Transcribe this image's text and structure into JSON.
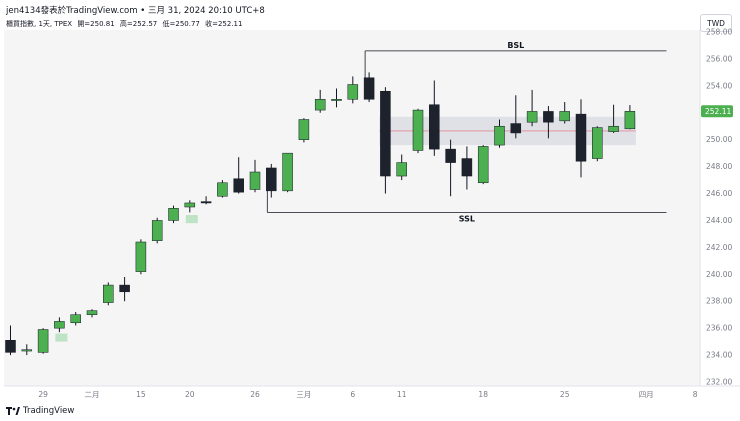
{
  "header": {
    "publisher_line": "jen4134發表於TradingView.com • 三月 31, 2024 20:10 UTC+8"
  },
  "symbol_info": {
    "name": "櫃買指數, 1天, TPEX",
    "open": "開=250.81",
    "high": "高=252.57",
    "low": "低=250.77",
    "close": "收=252.11"
  },
  "currency_label": "TWD",
  "footer": {
    "brand": "TradingView"
  },
  "colors": {
    "up": "#4caf50",
    "down": "#1e222d",
    "wick": "#131722",
    "last_price_badge": "#4caf50",
    "range_box": "#d1d4dc",
    "midline": "#f23645",
    "fvg": "#b2dfb9"
  },
  "chart_data": {
    "type": "candlestick",
    "ylim": [
      232,
      258
    ],
    "y_ticks": [
      "232.00",
      "234.00",
      "236.00",
      "238.00",
      "240.00",
      "242.00",
      "244.00",
      "246.00",
      "248.00",
      "250.00",
      "252.00",
      "254.00",
      "256.00",
      "258.00"
    ],
    "x_ticks": [
      {
        "label": "29",
        "index": 2
      },
      {
        "label": "二月",
        "index": 5
      },
      {
        "label": "15",
        "index": 8
      },
      {
        "label": "20",
        "index": 11
      },
      {
        "label": "26",
        "index": 15
      },
      {
        "label": "三月",
        "index": 18
      },
      {
        "label": "6",
        "index": 21
      },
      {
        "label": "11",
        "index": 24
      },
      {
        "label": "18",
        "index": 29
      },
      {
        "label": "25",
        "index": 34
      },
      {
        "label": "四月",
        "index": 39
      },
      {
        "label": "8",
        "index": 42
      }
    ],
    "candles": [
      {
        "o": 235.1,
        "h": 236.2,
        "l": 234.0,
        "c": 234.2
      },
      {
        "o": 234.3,
        "h": 234.8,
        "l": 234.0,
        "c": 234.4
      },
      {
        "o": 234.2,
        "h": 236.0,
        "l": 234.1,
        "c": 235.9
      },
      {
        "o": 236.0,
        "h": 236.8,
        "l": 235.7,
        "c": 236.5
      },
      {
        "o": 236.4,
        "h": 237.2,
        "l": 236.2,
        "c": 237.0
      },
      {
        "o": 237.0,
        "h": 237.4,
        "l": 236.8,
        "c": 237.3
      },
      {
        "o": 237.9,
        "h": 239.4,
        "l": 237.7,
        "c": 239.2
      },
      {
        "o": 239.2,
        "h": 239.8,
        "l": 238.0,
        "c": 238.7
      },
      {
        "o": 240.2,
        "h": 242.6,
        "l": 240.0,
        "c": 242.4
      },
      {
        "o": 242.5,
        "h": 244.2,
        "l": 242.3,
        "c": 244.0
      },
      {
        "o": 244.0,
        "h": 245.1,
        "l": 243.8,
        "c": 244.9
      },
      {
        "o": 245.0,
        "h": 245.5,
        "l": 244.6,
        "c": 245.3
      },
      {
        "o": 245.4,
        "h": 245.8,
        "l": 245.2,
        "c": 245.3
      },
      {
        "o": 245.8,
        "h": 247.0,
        "l": 245.7,
        "c": 246.8
      },
      {
        "o": 247.1,
        "h": 248.7,
        "l": 246.0,
        "c": 246.1
      },
      {
        "o": 246.3,
        "h": 248.5,
        "l": 246.1,
        "c": 247.6
      },
      {
        "o": 247.9,
        "h": 248.2,
        "l": 245.7,
        "c": 246.2
      },
      {
        "o": 246.2,
        "h": 249.0,
        "l": 246.1,
        "c": 249.0
      },
      {
        "o": 250.0,
        "h": 251.6,
        "l": 249.8,
        "c": 251.5
      },
      {
        "o": 252.2,
        "h": 253.7,
        "l": 252.0,
        "c": 253.0
      },
      {
        "o": 253.0,
        "h": 253.8,
        "l": 252.4,
        "c": 253.0
      },
      {
        "o": 253.0,
        "h": 254.7,
        "l": 252.7,
        "c": 254.1
      },
      {
        "o": 254.6,
        "h": 255.0,
        "l": 252.8,
        "c": 253.0
      },
      {
        "o": 253.6,
        "h": 253.9,
        "l": 246.0,
        "c": 247.3
      },
      {
        "o": 247.3,
        "h": 248.9,
        "l": 247.0,
        "c": 248.3
      },
      {
        "o": 249.2,
        "h": 252.3,
        "l": 249.0,
        "c": 252.2
      },
      {
        "o": 252.6,
        "h": 254.4,
        "l": 248.8,
        "c": 249.3
      },
      {
        "o": 249.3,
        "h": 250.0,
        "l": 245.8,
        "c": 248.3
      },
      {
        "o": 248.6,
        "h": 249.5,
        "l": 246.3,
        "c": 247.3
      },
      {
        "o": 246.8,
        "h": 249.6,
        "l": 246.7,
        "c": 249.5
      },
      {
        "o": 249.6,
        "h": 251.5,
        "l": 249.4,
        "c": 251.0
      },
      {
        "o": 251.2,
        "h": 253.3,
        "l": 250.1,
        "c": 250.5
      },
      {
        "o": 251.3,
        "h": 253.7,
        "l": 251.0,
        "c": 252.1
      },
      {
        "o": 252.1,
        "h": 252.5,
        "l": 250.1,
        "c": 251.3
      },
      {
        "o": 251.4,
        "h": 252.8,
        "l": 251.2,
        "c": 252.1
      },
      {
        "o": 251.9,
        "h": 253.0,
        "l": 247.2,
        "c": 248.4
      },
      {
        "o": 248.6,
        "h": 251.0,
        "l": 248.4,
        "c": 250.9
      },
      {
        "o": 250.6,
        "h": 252.6,
        "l": 250.5,
        "c": 251.0
      },
      {
        "o": 250.81,
        "h": 252.57,
        "l": 250.77,
        "c": 252.11
      }
    ],
    "last_price": "252.11",
    "levels": [
      {
        "label": "BSL",
        "price": 256.6,
        "start_index": 22,
        "extend_to_index": 40
      },
      {
        "label": "SSL",
        "price": 244.6,
        "start_index": 16,
        "extend_to_index": 40
      }
    ],
    "range_box": {
      "start_index": 23,
      "end_index": 38,
      "top": 251.7,
      "bottom": 249.6,
      "mid": 250.65
    },
    "fvg_boxes": [
      {
        "index": 3,
        "top": 235.6,
        "bottom": 235.0
      },
      {
        "index": 11,
        "top": 244.4,
        "bottom": 243.8
      }
    ]
  }
}
